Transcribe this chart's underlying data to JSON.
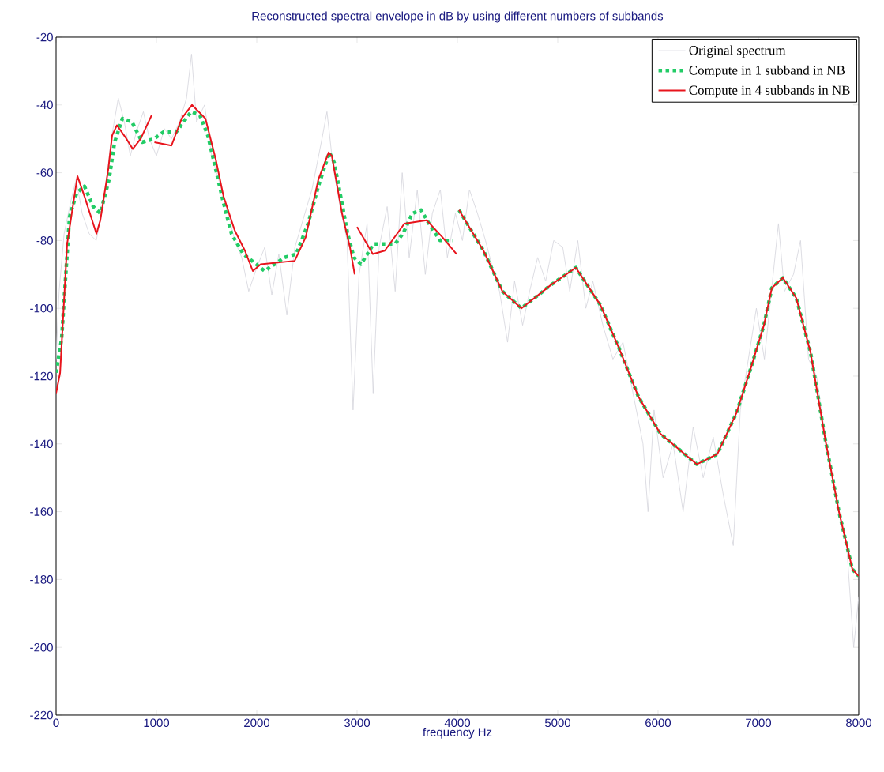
{
  "chart_data": {
    "type": "line",
    "title": "Reconstructed spectral envelope in dB by using different numbers of subbands",
    "xlabel": "frequency Hz",
    "xlim": [
      0,
      8000
    ],
    "ylim": [
      -220,
      -20
    ],
    "xticks": [
      0,
      1000,
      2000,
      3000,
      4000,
      5000,
      6000,
      7000,
      8000
    ],
    "yticks": [
      -220,
      -200,
      -180,
      -160,
      -140,
      -120,
      -100,
      -80,
      -60,
      -40,
      -20
    ],
    "legend": "top right",
    "series": [
      {
        "name": "Original spectrum",
        "color": "#d4d4dc",
        "line_style": "solid",
        "x": [
          0,
          30,
          80,
          150,
          200,
          260,
          330,
          400,
          470,
          550,
          620,
          680,
          740,
          800,
          870,
          930,
          1000,
          1080,
          1150,
          1230,
          1300,
          1350,
          1400,
          1480,
          1550,
          1620,
          1700,
          1780,
          1850,
          1920,
          2000,
          2080,
          2150,
          2220,
          2300,
          2380,
          2450,
          2550,
          2650,
          2700,
          2760,
          2830,
          2900,
          2960,
          3020,
          3100,
          3160,
          3220,
          3300,
          3380,
          3450,
          3520,
          3600,
          3680,
          3750,
          3830,
          3900,
          3980,
          4050,
          4120,
          4200,
          4280,
          4350,
          4420,
          4500,
          4570,
          4650,
          4720,
          4800,
          4880,
          4960,
          5050,
          5120,
          5200,
          5280,
          5350,
          5450,
          5550,
          5650,
          5750,
          5850,
          5900,
          5960,
          6050,
          6150,
          6250,
          6350,
          6450,
          6550,
          6650,
          6750,
          6820,
          6900,
          6980,
          7060,
          7130,
          7200,
          7260,
          7350,
          7420,
          7500,
          7580,
          7700,
          7800,
          7880,
          7950,
          8000
        ],
        "values": [
          -115,
          -95,
          -78,
          -68,
          -62,
          -72,
          -78,
          -80,
          -70,
          -50,
          -38,
          -45,
          -55,
          -48,
          -42,
          -50,
          -55,
          -47,
          -50,
          -45,
          -38,
          -25,
          -45,
          -40,
          -55,
          -62,
          -70,
          -80,
          -85,
          -95,
          -88,
          -82,
          -96,
          -84,
          -102,
          -82,
          -75,
          -65,
          -50,
          -42,
          -58,
          -70,
          -80,
          -130,
          -90,
          -75,
          -125,
          -82,
          -70,
          -95,
          -60,
          -85,
          -65,
          -90,
          -72,
          -65,
          -85,
          -72,
          -80,
          -65,
          -72,
          -80,
          -88,
          -95,
          -110,
          -92,
          -105,
          -95,
          -85,
          -92,
          -80,
          -82,
          -95,
          -80,
          -100,
          -92,
          -105,
          -115,
          -110,
          -125,
          -140,
          -160,
          -130,
          -150,
          -140,
          -160,
          -135,
          -150,
          -138,
          -155,
          -170,
          -130,
          -115,
          -100,
          -115,
          -95,
          -75,
          -95,
          -90,
          -80,
          -115,
          -120,
          -145,
          -160,
          -170,
          -200,
          -185
        ]
      },
      {
        "name": "Compute in 1 subband in NB",
        "color": "#22cc66",
        "line_style": "dotted",
        "x": [
          0,
          55,
          134,
          205,
          283,
          370,
          441,
          528,
          583,
          661,
          756,
          858,
          976,
          1071,
          1197,
          1346,
          1433,
          1512,
          1591,
          1661,
          1748,
          1866,
          2079,
          2276,
          2394,
          2512,
          2614,
          2724,
          2772,
          2843,
          2906,
          2969,
          3039,
          3165,
          3378,
          3457,
          3551,
          3638,
          3717,
          3827,
          3953,
          3980,
          4016,
          4260,
          4449,
          4638,
          4937,
          5181,
          5425,
          5614,
          5803,
          6024,
          6386,
          6591,
          6780,
          6921,
          7055,
          7134,
          7244,
          7378,
          7520,
          7669,
          7803,
          7937,
          8000
        ],
        "values": [
          -119,
          -109,
          -73,
          -66,
          -64,
          -70,
          -72,
          -62,
          -51,
          -44,
          -45,
          -51,
          -50,
          -48,
          -48,
          -42,
          -43,
          -49,
          -59,
          -68,
          -78,
          -84,
          -89,
          -85,
          -84,
          -75,
          -64,
          -54,
          -57,
          -68,
          -78,
          -85,
          -87,
          -81,
          -81,
          -78,
          -72,
          -71,
          -75,
          -80,
          -80,
          null,
          -71,
          -83,
          -95,
          -100,
          -93,
          -88,
          -99,
          -112,
          -126,
          -137,
          -146,
          -143,
          -131,
          -118,
          -105,
          -94,
          -91,
          -97,
          -113,
          -139,
          -160,
          -177,
          -179
        ]
      },
      {
        "name": "Compute in 4 subbands in NB",
        "color": "#e8141c",
        "line_style": "solid",
        "x": [
          0,
          40,
          110,
          213,
          283,
          402,
          441,
          520,
          559,
          606,
          701,
          764,
          843,
          953,
          965,
          980,
          1150,
          1252,
          1354,
          1488,
          1591,
          1669,
          1780,
          1882,
          1961,
          2039,
          2378,
          2488,
          2614,
          2717,
          2748,
          2850,
          2929,
          2976,
          2988,
          3000,
          3157,
          3276,
          3472,
          3693,
          3850,
          3992,
          4004,
          4016,
          4260,
          4449,
          4638,
          4937,
          5181,
          5425,
          5614,
          5803,
          6024,
          6386,
          6591,
          6780,
          6921,
          7055,
          7134,
          7244,
          7378,
          7520,
          7669,
          7803,
          7937,
          8000
        ],
        "values": [
          -125,
          -119,
          -81,
          -61,
          -67,
          -78,
          -74,
          -59,
          -49,
          -46,
          -50,
          -53,
          -50,
          -43,
          null,
          -51,
          -52,
          -44,
          -40,
          -44,
          -56,
          -67,
          -77,
          -83,
          -89,
          -87,
          -86,
          -79,
          -62,
          -54,
          -55,
          -72,
          -82,
          -90,
          null,
          -76,
          -84,
          -83,
          -75,
          -74,
          -79,
          -84,
          null,
          -71,
          -83,
          -95,
          -100,
          -93,
          -88,
          -99,
          -112,
          -126,
          -137,
          -146,
          -143,
          -131,
          -118,
          -105,
          -94,
          -91,
          -97,
          -113,
          -139,
          -160,
          -177,
          -179
        ]
      }
    ]
  }
}
